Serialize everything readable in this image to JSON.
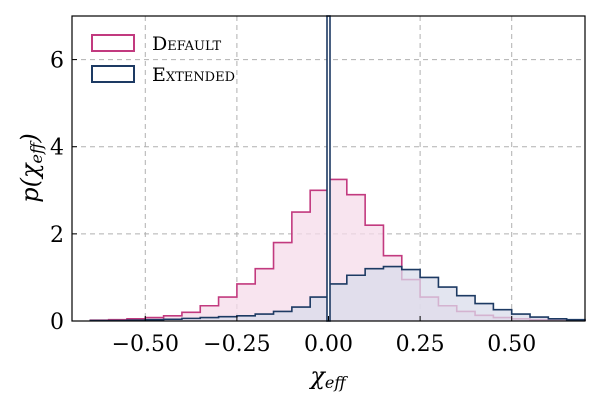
{
  "chart_data": {
    "type": "histogram",
    "xlabel": "χ",
    "xlabel_sub": "eff",
    "ylabel": "p(χ",
    "ylabel_sub": "eff",
    "ylabel_close": ")",
    "xlim": [
      -0.7,
      0.7
    ],
    "ylim": [
      0,
      7
    ],
    "x_ticks": [
      -0.5,
      -0.25,
      0.0,
      0.25,
      0.5
    ],
    "x_tick_labels": [
      "−0.50",
      "−0.25",
      "0.00",
      "0.25",
      "0.50"
    ],
    "y_ticks": [
      0,
      2,
      4,
      6
    ],
    "y_tick_labels": [
      "0",
      "2",
      "4",
      "6"
    ],
    "grid": true,
    "legend_position": "top-left",
    "series": [
      {
        "name": "Default",
        "color": "#c23a7f",
        "fill": "#f6dbe9",
        "bin_edges": [
          -0.65,
          -0.6,
          -0.55,
          -0.5,
          -0.45,
          -0.4,
          -0.35,
          -0.3,
          -0.25,
          -0.2,
          -0.15,
          -0.1,
          -0.05,
          0.0,
          0.05,
          0.1,
          0.15,
          0.2,
          0.25,
          0.3,
          0.35,
          0.4,
          0.45,
          0.5,
          0.55,
          0.6,
          0.65,
          0.7
        ],
        "values": [
          0.02,
          0.03,
          0.05,
          0.08,
          0.12,
          0.2,
          0.35,
          0.55,
          0.85,
          1.2,
          1.8,
          2.5,
          3.0,
          3.25,
          2.9,
          2.2,
          1.5,
          0.95,
          0.55,
          0.35,
          0.22,
          0.13,
          0.08,
          0.05,
          0.03,
          0.02,
          0.01
        ]
      },
      {
        "name": "Extended",
        "color": "#1d3a63",
        "fill": "#d9dceb",
        "bin_edges": [
          -0.65,
          -0.6,
          -0.55,
          -0.5,
          -0.45,
          -0.4,
          -0.35,
          -0.3,
          -0.25,
          -0.2,
          -0.15,
          -0.1,
          -0.05,
          0.0,
          0.05,
          0.1,
          0.15,
          0.2,
          0.25,
          0.3,
          0.35,
          0.4,
          0.45,
          0.5,
          0.55,
          0.6,
          0.65,
          0.7
        ],
        "values": [
          0.01,
          0.01,
          0.02,
          0.03,
          0.04,
          0.06,
          0.08,
          0.1,
          0.12,
          0.16,
          0.22,
          0.32,
          0.55,
          0.85,
          1.05,
          1.2,
          1.25,
          1.18,
          1.0,
          0.78,
          0.58,
          0.4,
          0.26,
          0.16,
          0.09,
          0.05,
          0.03
        ]
      }
    ],
    "spike": {
      "series": "Extended",
      "x": 0.0,
      "height": 7.5
    }
  },
  "legend": {
    "items": [
      {
        "label": "Default",
        "color": "#c23a7f",
        "fill": "#ffffff"
      },
      {
        "label": "Extended",
        "color": "#1d3a63",
        "fill": "#ffffff"
      }
    ]
  }
}
